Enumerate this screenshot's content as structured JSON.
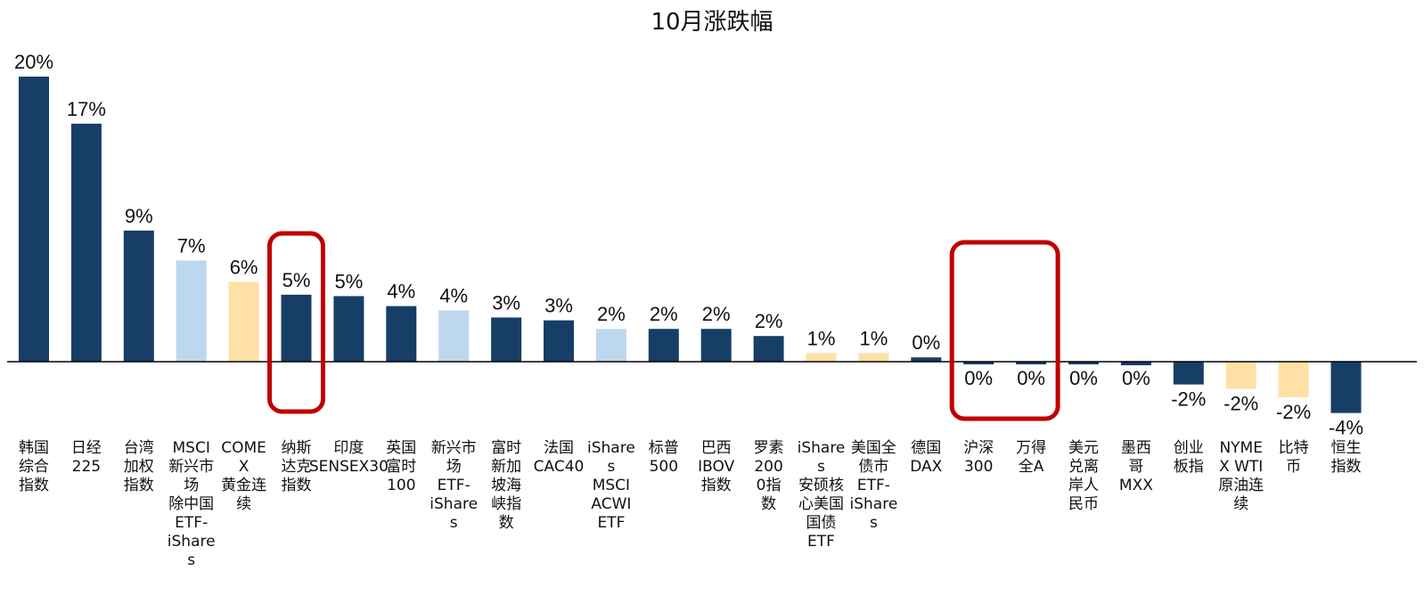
{
  "chart_data": {
    "type": "bar",
    "title": "10月涨跌幅",
    "xlabel": "",
    "ylabel": "",
    "ylim": [
      -4.6,
      20.6
    ],
    "grid": false,
    "legend": "none",
    "categories": [
      [
        "韩国",
        "综合",
        "指数"
      ],
      [
        "日经",
        "225"
      ],
      [
        "台湾",
        "加权",
        "指数"
      ],
      [
        "MSCI",
        "新兴市",
        "场",
        "除中国",
        "ETF-",
        "iShare",
        "s"
      ],
      [
        "COME",
        "X",
        "黄金连",
        "续"
      ],
      [
        "纳斯",
        "达克",
        "指数"
      ],
      [
        "印度",
        "SENSEX30"
      ],
      [
        "英国",
        "富时",
        "100"
      ],
      [
        "新兴市",
        "场",
        "ETF-",
        "iShare",
        "s"
      ],
      [
        "富时",
        "新加",
        "坡海",
        "峡指",
        "数"
      ],
      [
        "法国",
        "CAC40"
      ],
      [
        "iShare",
        "s",
        "MSCI",
        "ACWI",
        "ETF"
      ],
      [
        "标普",
        "500"
      ],
      [
        "巴西",
        "IBOV",
        "指数"
      ],
      [
        "罗素",
        "200",
        "0指",
        "数"
      ],
      [
        "iShare",
        "s",
        "安硕核",
        "心美国",
        "国债",
        "ETF"
      ],
      [
        "美国全",
        "债市",
        "ETF-",
        "iShare",
        "s"
      ],
      [
        "德国",
        "DAX"
      ],
      [
        "沪深",
        "300"
      ],
      [
        "万得",
        "全A"
      ],
      [
        "美元",
        "兑离",
        "岸人",
        "民币"
      ],
      [
        "墨西",
        "哥",
        "MXX"
      ],
      [
        "创业",
        "板指"
      ],
      [
        "NYME",
        "X WTI",
        "原油连",
        "续"
      ],
      [
        "比特",
        "币"
      ],
      [
        "恒生",
        "指数"
      ]
    ],
    "values": [
      20.0,
      16.7,
      9.2,
      7.1,
      5.6,
      4.7,
      4.6,
      3.9,
      3.6,
      3.1,
      2.9,
      2.3,
      2.3,
      2.3,
      1.8,
      0.6,
      0.6,
      0.3,
      -0.05,
      -0.05,
      -0.1,
      -0.25,
      -1.6,
      -1.9,
      -2.5,
      -3.6
    ],
    "data_labels": [
      "20%",
      "17%",
      "9%",
      "7%",
      "6%",
      "5%",
      "5%",
      "4%",
      "4%",
      "3%",
      "3%",
      "2%",
      "2%",
      "2%",
      "2%",
      "1%",
      "1%",
      "0%",
      "0%",
      "0%",
      "0%",
      "0%",
      "-2%",
      "-2%",
      "-2%",
      "-4%"
    ],
    "label_positions": [
      "above",
      "above",
      "above",
      "above",
      "above",
      "above",
      "above",
      "above",
      "above",
      "above",
      "above",
      "above",
      "above",
      "above",
      "above",
      "above",
      "above",
      "above",
      "below",
      "below",
      "below",
      "below",
      "below",
      "below",
      "below",
      "below"
    ],
    "bar_colors": [
      "#173E67",
      "#173E67",
      "#173E67",
      "#BDD7EE",
      "#FFE0A6",
      "#173E67",
      "#173E67",
      "#173E67",
      "#BDD7EE",
      "#173E67",
      "#173E67",
      "#BDD7EE",
      "#173E67",
      "#173E67",
      "#173E67",
      "#FFE0A6",
      "#FFE0A6",
      "#173E67",
      "#173E67",
      "#173E67",
      "#173E67",
      "#173E67",
      "#173E67",
      "#FFE0A6",
      "#FFE0A6",
      "#173E67"
    ],
    "highlighted": [
      [
        "纳斯达克指数"
      ],
      [
        "沪深300",
        "万得全A"
      ]
    ],
    "highlight_color": "#C00000"
  }
}
